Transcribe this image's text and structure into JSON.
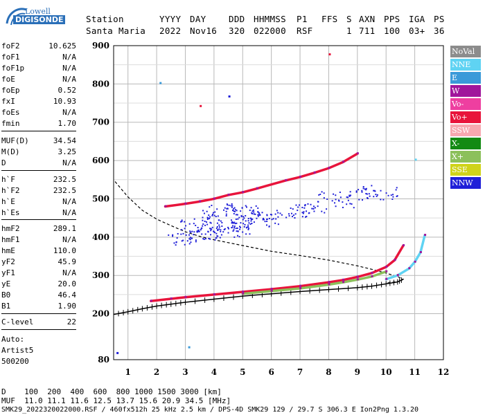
{
  "logo": {
    "line1": "Lowell",
    "line2": "DIGISONDE"
  },
  "header": {
    "labels": [
      "Station",
      "YYYY",
      "DAY",
      "DDD",
      "HHMMSS",
      "P1",
      "FFS",
      "S",
      "AXN",
      "PPS",
      "IGA",
      "PS"
    ],
    "values": [
      "Santa Maria",
      "2022",
      "Nov16",
      "320",
      "022000",
      "RSF",
      "1",
      "711",
      "100",
      "03+",
      "36"
    ]
  },
  "params": {
    "group1": [
      {
        "k": "foF2",
        "v": "10.625"
      },
      {
        "k": "foF1",
        "v": "N/A"
      },
      {
        "k": "foF1p",
        "v": "N/A"
      },
      {
        "k": "foE",
        "v": "N/A"
      },
      {
        "k": "foEp",
        "v": "0.52"
      },
      {
        "k": "fxI",
        "v": "10.93"
      },
      {
        "k": "foEs",
        "v": "N/A"
      },
      {
        "k": "fmin",
        "v": "1.70"
      }
    ],
    "group2": [
      {
        "k": "MUF(D)",
        "v": "34.54"
      },
      {
        "k": "M(D)",
        "v": "3.25"
      },
      {
        "k": "D",
        "v": "N/A"
      }
    ],
    "group3": [
      {
        "k": "h`F",
        "v": "232.5"
      },
      {
        "k": "h`F2",
        "v": "232.5"
      },
      {
        "k": "h`E",
        "v": "N/A"
      },
      {
        "k": "h`Es",
        "v": "N/A"
      }
    ],
    "group4": [
      {
        "k": "hmF2",
        "v": "289.1"
      },
      {
        "k": "hmF1",
        "v": "N/A"
      },
      {
        "k": "hmE",
        "v": "110.0"
      },
      {
        "k": "yF2",
        "v": "45.9"
      },
      {
        "k": "yF1",
        "v": "N/A"
      },
      {
        "k": "yE",
        "v": "20.0"
      },
      {
        "k": "B0",
        "v": "46.4"
      },
      {
        "k": "B1",
        "v": "1.90"
      }
    ],
    "clevel": {
      "k": "C-level",
      "v": "22"
    },
    "auto": [
      "Auto:",
      "Artist5",
      "500200"
    ]
  },
  "legend": [
    {
      "label": "NoVal",
      "color": "#8c8c8c"
    },
    {
      "label": "NNE",
      "color": "#5fd3f3"
    },
    {
      "label": "E",
      "color": "#3a9ad9"
    },
    {
      "label": "W",
      "color": "#a0169b"
    },
    {
      "label": "Vo-",
      "color": "#ee3fa0"
    },
    {
      "label": "Vo+",
      "color": "#e8143b"
    },
    {
      "label": "SSW",
      "color": "#f7a8b0"
    },
    {
      "label": "X-",
      "color": "#138a13"
    },
    {
      "label": "X+",
      "color": "#8cc05b"
    },
    {
      "label": "SSE",
      "color": "#cfd31a"
    },
    {
      "label": "NNW",
      "color": "#1f1fd8"
    }
  ],
  "footer": {
    "d_line": "D    100  200  400  600  800 1000 1500 3000 [km]",
    "muf_line": "MUF  11.0 11.1 11.6 12.5 13.7 15.6 20.9 34.5 [MHz]",
    "info_line": "SMK29_2022320022000.RSF / 460fx512h 25 kHz 2.5 km / DPS-4D SMK29 129 / 29.7 S 306.3 E Ion2Png 1.3.20"
  },
  "chart_data": {
    "type": "scatter",
    "xlim": [
      0.5,
      12
    ],
    "ylim": [
      80,
      900
    ],
    "x_ticks": [
      1,
      2,
      3,
      4,
      5,
      6,
      7,
      8,
      9,
      10,
      11,
      12
    ],
    "y_ticks": [
      80,
      200,
      300,
      400,
      500,
      600,
      700,
      800,
      900
    ],
    "grid": true,
    "series": [
      {
        "color": "#000000",
        "style": "dashed",
        "x": [
          0.55,
          1.0,
          1.5,
          2.0,
          2.5,
          3.0,
          3.5,
          4.0,
          5.0,
          6.0,
          7.0,
          8.0,
          9.0,
          9.5,
          10.0,
          10.4,
          10.6,
          10.5,
          10.0
        ],
        "y": [
          545,
          505,
          470,
          447,
          430,
          414,
          402,
          393,
          378,
          363,
          352,
          340,
          325,
          316,
          306,
          297,
          290,
          285,
          280
        ]
      },
      {
        "color": "#000000",
        "style": "ticked",
        "x": [
          0.5,
          1.0,
          1.5,
          2.0,
          2.5,
          3.0,
          4.0,
          5.0,
          6.0,
          7.0,
          8.0,
          9.0,
          9.5,
          10.0,
          10.4,
          10.6
        ],
        "y": [
          198,
          205,
          213,
          220,
          225,
          230,
          238,
          246,
          252,
          258,
          263,
          268,
          272,
          278,
          283,
          290
        ]
      },
      {
        "color": "#e8143b",
        "style": "trace",
        "x": [
          1.8,
          2.5,
          3.0,
          4.0,
          5.0,
          6.0,
          7.0,
          8.0,
          8.5,
          9.0,
          9.5,
          10.0,
          10.3,
          10.6
        ],
        "y": [
          233,
          239,
          243,
          250,
          257,
          264,
          272,
          282,
          288,
          296,
          306,
          322,
          340,
          378
        ]
      },
      {
        "color": "#8cc05b",
        "style": "trace",
        "x": [
          5.0,
          6.0,
          7.0,
          8.0,
          8.5,
          9.0,
          9.5,
          10.0
        ],
        "y": [
          252,
          259,
          266,
          276,
          282,
          289,
          297,
          310
        ]
      },
      {
        "color": "#5fd3f3",
        "style": "trace",
        "x": [
          10.0,
          10.4,
          10.8,
          11.0,
          11.2,
          11.35
        ],
        "y": [
          290,
          300,
          318,
          335,
          360,
          405
        ]
      },
      {
        "color": "#e8143b",
        "style": "trace",
        "x": [
          2.3,
          3.0,
          3.5,
          4.0,
          4.5,
          5.0,
          5.5,
          6.5,
          7.0,
          7.5,
          8.0,
          8.5,
          9.0
        ],
        "y": [
          480,
          487,
          493,
          500,
          510,
          517,
          527,
          548,
          557,
          568,
          580,
          596,
          618
        ]
      },
      {
        "color": "#1f1fd8",
        "style": "cloud",
        "x": [
          3.0,
          3.5,
          4.0,
          4.5,
          5.0,
          5.5,
          6.0,
          3.2,
          4.0,
          4.8,
          5.2,
          2.8,
          3.5,
          4.5,
          5.0,
          4.2,
          3.8,
          4.6,
          5.6,
          6.5,
          7.0,
          7.5,
          8.0,
          8.5,
          9.0,
          9.5,
          10.0
        ],
        "y": [
          400,
          410,
          420,
          430,
          440,
          445,
          450,
          430,
          455,
          460,
          470,
          395,
          440,
          415,
          425,
          470,
          410,
          480,
          455,
          465,
          470,
          480,
          505,
          495,
          510,
          520,
          515
        ]
      }
    ]
  }
}
